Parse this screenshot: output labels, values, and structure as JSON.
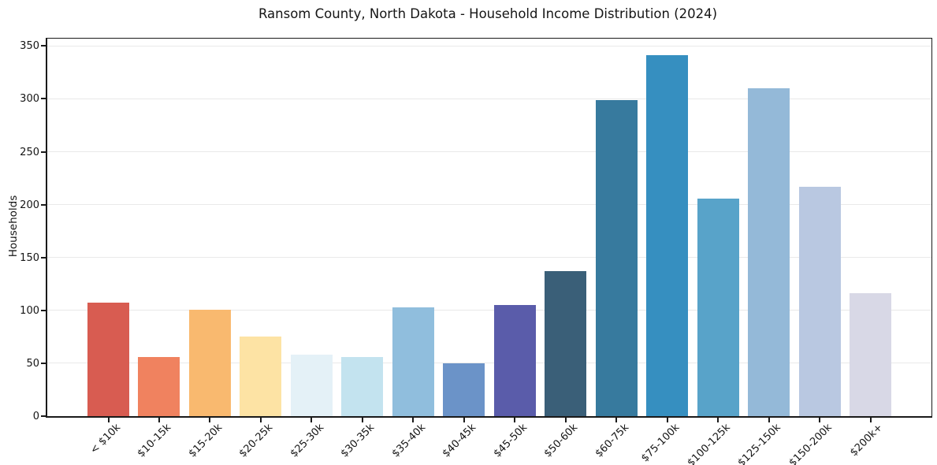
{
  "title": "Ransom County, North Dakota - Household Income Distribution (2024)",
  "chart_data": {
    "type": "bar",
    "title": "Ransom County, North Dakota - Household Income Distribution (2024)",
    "xlabel": "",
    "ylabel": "Households",
    "categories": [
      "< $10k",
      "$10-15k",
      "$15-20k",
      "$20-25k",
      "$25-30k",
      "$30-35k",
      "$35-40k",
      "$40-45k",
      "$45-50k",
      "$50-60k",
      "$60-75k",
      "$75-100k",
      "$100-125k",
      "$125-150k",
      "$150-200k",
      "$200k+"
    ],
    "values": [
      107,
      56,
      101,
      75,
      58,
      56,
      103,
      50,
      105,
      137,
      299,
      341,
      206,
      310,
      217,
      116
    ],
    "bar_colors": [
      "#d85c51",
      "#f0825f",
      "#f9b96f",
      "#fde3a4",
      "#e4f1f7",
      "#c3e3ef",
      "#90bedd",
      "#6b93c8",
      "#5a5caa",
      "#3a5f78",
      "#377a9e",
      "#368fc0",
      "#58a3c9",
      "#94b9d8",
      "#b9c8e1",
      "#d8d8e6"
    ],
    "yticks": [
      0,
      50,
      100,
      150,
      200,
      250,
      300,
      350
    ],
    "ylim": [
      0,
      357
    ],
    "xlim_categories_count": 16,
    "grid": "horizontal",
    "gridline_color": "#e9e9e9",
    "background_color": "#ffffff",
    "legend_position": "none",
    "x_tick_rotation_deg": 45
  }
}
